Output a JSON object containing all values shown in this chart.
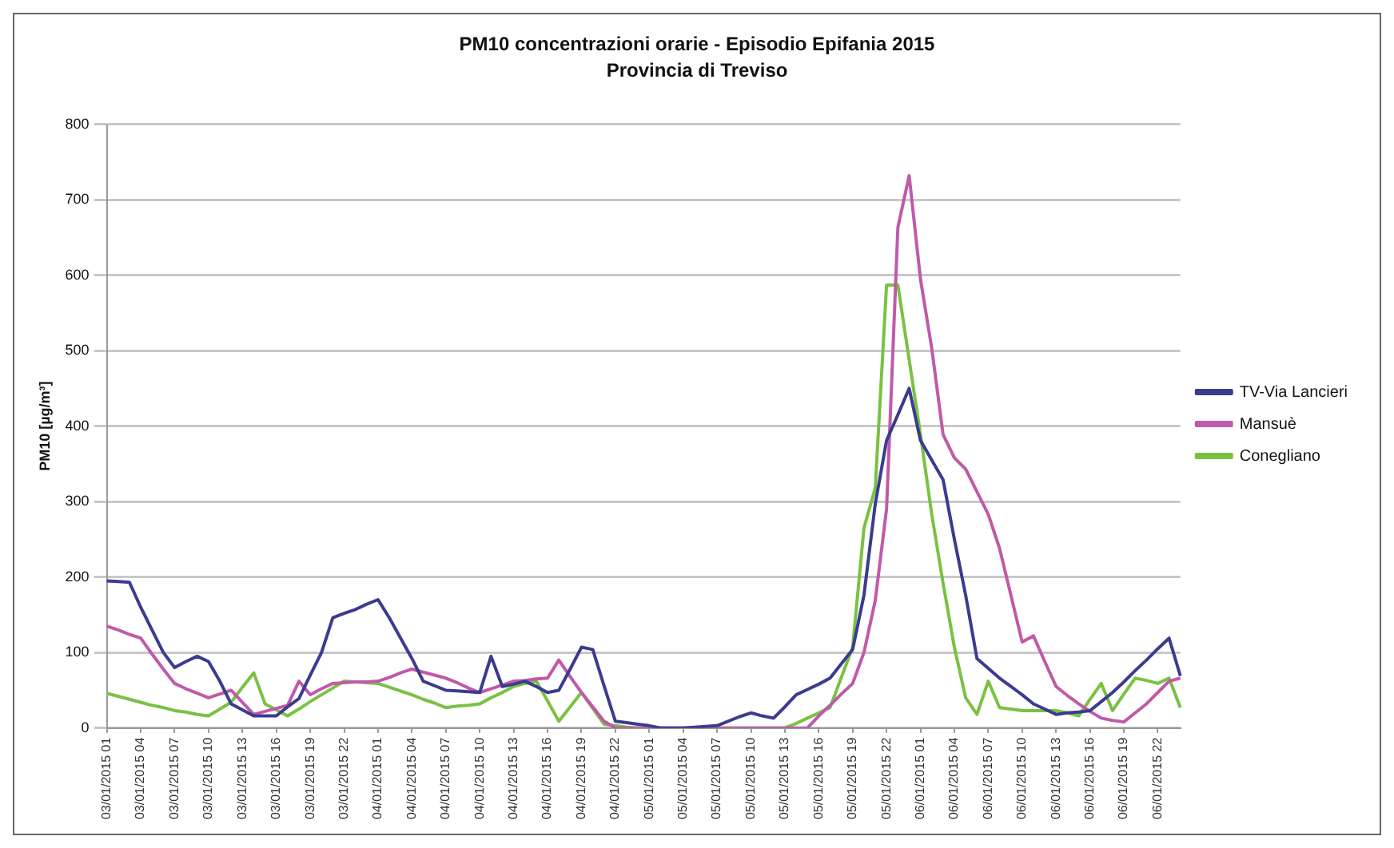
{
  "chart_data": {
    "type": "line",
    "title": "PM10 concentrazioni orarie - Episodio Epifania 2015",
    "subtitle": "Provincia di Treviso",
    "ylabel": "PM10 [µg/m³]",
    "categories": [
      "03/01/2015 01",
      null,
      null,
      "03/01/2015 04",
      null,
      null,
      "03/01/2015 07",
      null,
      null,
      "03/01/2015 10",
      null,
      null,
      "03/01/2015 13",
      null,
      null,
      "03/01/2015 16",
      null,
      null,
      "03/01/2015 19",
      null,
      null,
      "03/01/2015 22",
      null,
      null,
      "04/01/2015 01",
      null,
      null,
      "04/01/2015 04",
      null,
      null,
      "04/01/2015 07",
      null,
      null,
      "04/01/2015 10",
      null,
      null,
      "04/01/2015 13",
      null,
      null,
      "04/01/2015 16",
      null,
      null,
      "04/01/2015 19",
      null,
      null,
      "04/01/2015 22",
      null,
      null,
      "05/01/2015 01",
      null,
      null,
      "05/01/2015 04",
      null,
      null,
      "05/01/2015 07",
      null,
      null,
      "05/01/2015 10",
      null,
      null,
      "05/01/2015 13",
      null,
      null,
      "05/01/2015 16",
      null,
      null,
      "05/01/2015 19",
      null,
      null,
      "05/01/2015 22",
      null,
      null,
      "06/01/2015 01",
      null,
      null,
      "06/01/2015 04",
      null,
      null,
      "06/01/2015 07",
      null,
      null,
      "06/01/2015 10",
      null,
      null,
      "06/01/2015 13",
      null,
      null,
      "06/01/2015 16",
      null,
      null,
      "06/01/2015 19",
      null,
      null,
      "06/01/2015 22",
      null,
      null
    ],
    "ylim": [
      0,
      800
    ],
    "yticks": [
      0,
      100,
      200,
      300,
      400,
      500,
      600,
      700,
      800
    ],
    "grid": "y",
    "legend": "right",
    "marker": "none",
    "line_style": "solid",
    "series": [
      {
        "name": "TV-Via Lancieri",
        "color": "#3b3b8f",
        "values": [
          195,
          194,
          193,
          160,
          130,
          100,
          80,
          88,
          95,
          88,
          62,
          32,
          24,
          16,
          16,
          16,
          28,
          39,
          70,
          100,
          146,
          152,
          157,
          164,
          170,
          146,
          119,
          92,
          62,
          56,
          50,
          49,
          48,
          47,
          95,
          55,
          58,
          62,
          55,
          47,
          50,
          78,
          107,
          104,
          56,
          9,
          7,
          5,
          3,
          0,
          0,
          0,
          1,
          2,
          3,
          9,
          15,
          20,
          16,
          13,
          28,
          44,
          51,
          58,
          66,
          85,
          104,
          176,
          297,
          381,
          415,
          450,
          381,
          355,
          329,
          250,
          176,
          92,
          79,
          66,
          55,
          44,
          32,
          25,
          18,
          20,
          21,
          23,
          35,
          47,
          61,
          76,
          90,
          105,
          119,
          69
        ]
      },
      {
        "name": "Mansuè",
        "color": "#c05aa8",
        "values": [
          135,
          130,
          124,
          119,
          98,
          78,
          59,
          52,
          46,
          40,
          45,
          50,
          34,
          18,
          22,
          26,
          30,
          62,
          44,
          52,
          59,
          60,
          61,
          61,
          62,
          67,
          73,
          78,
          74,
          70,
          66,
          60,
          53,
          47,
          52,
          57,
          62,
          63,
          65,
          66,
          90,
          68,
          47,
          28,
          9,
          0,
          0,
          0,
          0,
          0,
          0,
          0,
          0,
          0,
          0,
          0,
          0,
          0,
          0,
          0,
          0,
          0,
          0,
          16,
          30,
          45,
          59,
          100,
          169,
          290,
          663,
          732,
          595,
          503,
          389,
          358,
          343,
          313,
          283,
          238,
          176,
          114,
          122,
          88,
          55,
          43,
          32,
          22,
          13,
          10,
          8,
          20,
          32,
          47,
          62,
          66
        ]
      },
      {
        "name": "Conegliano",
        "color": "#7ac143",
        "values": [
          46,
          42,
          38,
          34,
          30,
          27,
          23,
          21,
          18,
          16,
          25,
          34,
          54,
          73,
          32,
          24,
          16,
          25,
          35,
          44,
          53,
          62,
          61,
          60,
          59,
          54,
          49,
          44,
          38,
          33,
          27,
          29,
          30,
          32,
          40,
          47,
          55,
          59,
          62,
          36,
          9,
          28,
          47,
          26,
          5,
          3,
          1,
          0,
          0,
          0,
          0,
          0,
          0,
          0,
          0,
          0,
          0,
          0,
          0,
          0,
          0,
          6,
          13,
          20,
          27,
          67,
          107,
          265,
          318,
          587,
          587,
          488,
          389,
          283,
          192,
          107,
          40,
          18,
          62,
          27,
          25,
          23,
          23,
          23,
          23,
          20,
          16,
          38,
          59,
          23,
          45,
          66,
          63,
          59,
          66,
          27
        ]
      }
    ]
  }
}
